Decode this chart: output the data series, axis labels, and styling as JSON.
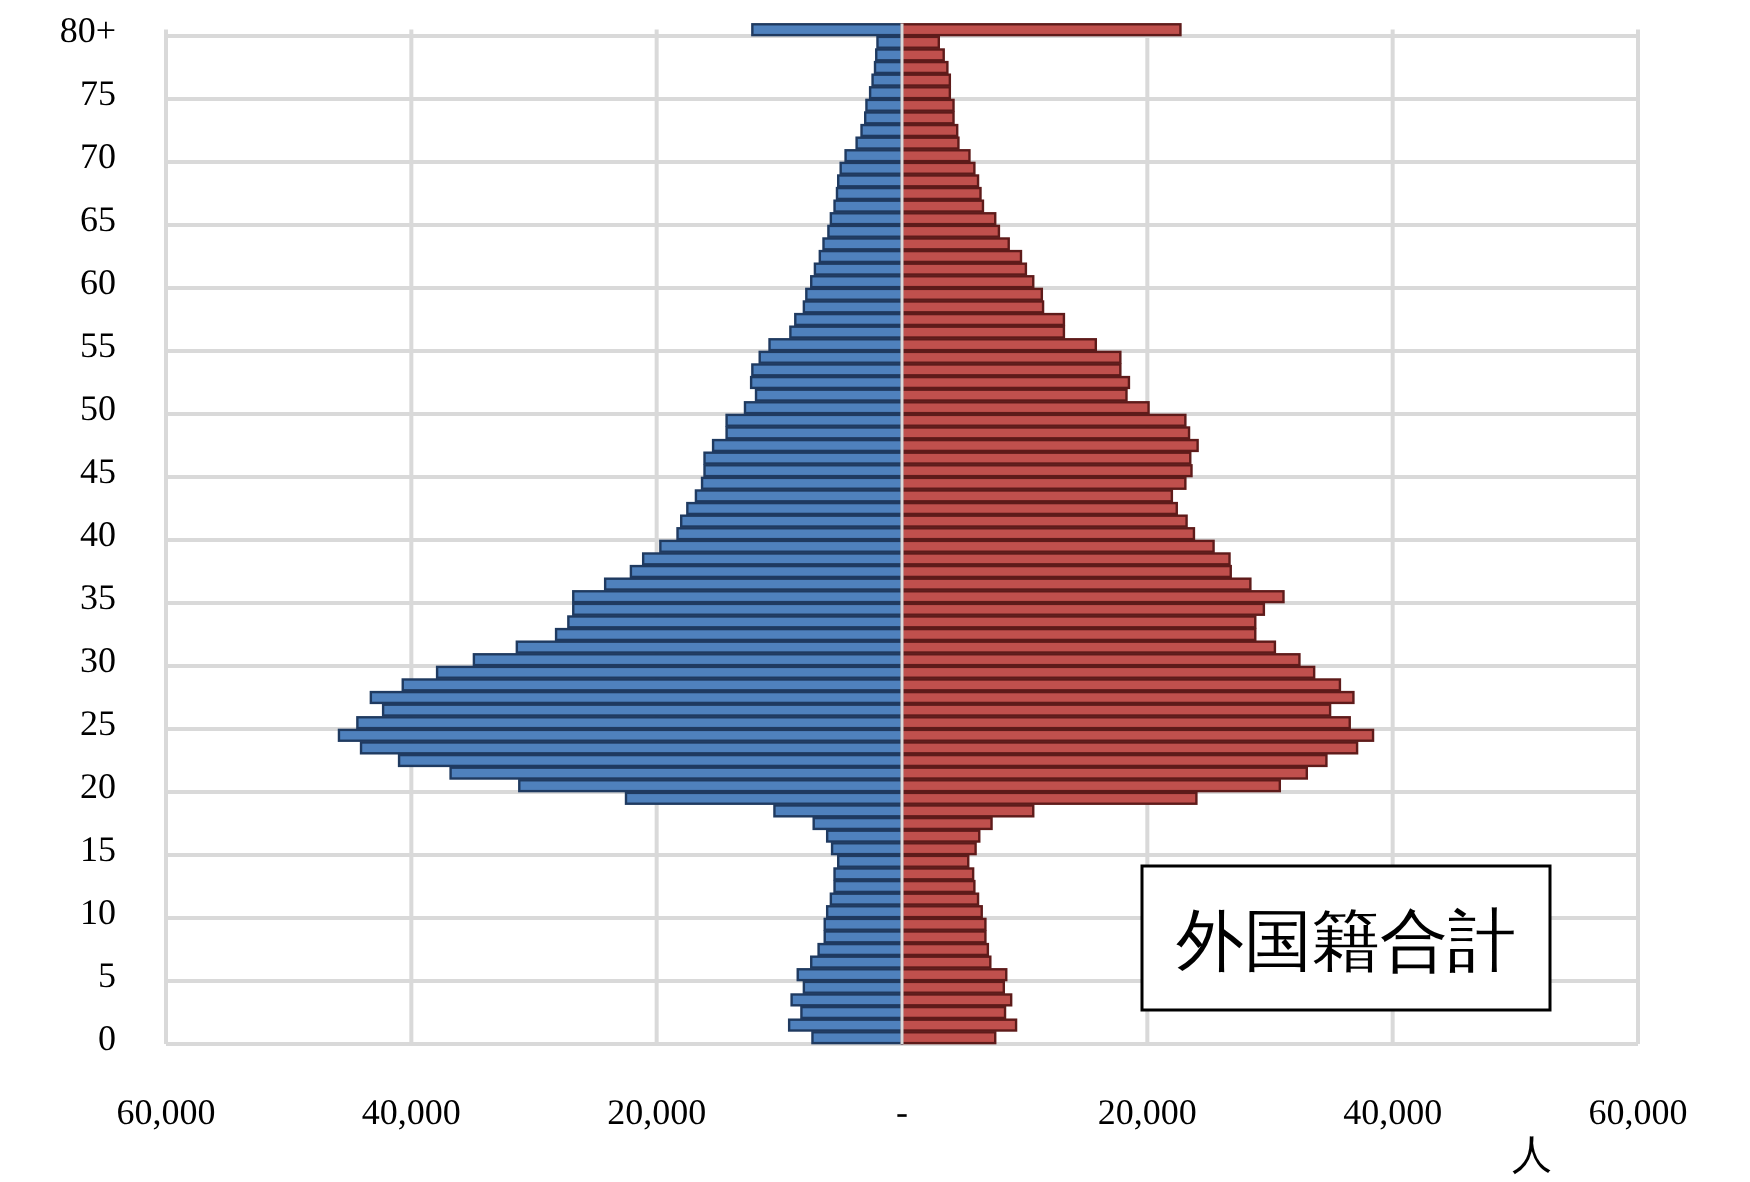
{
  "chart_data": {
    "type": "bar",
    "orientation": "horizontal",
    "stacked": true,
    "categories": [
      "80+",
      null,
      null,
      null,
      null,
      "75",
      null,
      null,
      null,
      null,
      "70",
      null,
      null,
      null,
      null,
      "65",
      null,
      null,
      null,
      null,
      "60",
      null,
      null,
      null,
      null,
      "55",
      null,
      null,
      null,
      null,
      "50",
      null,
      null,
      null,
      null,
      "45",
      null,
      null,
      null,
      null,
      "40",
      null,
      null,
      null,
      null,
      "35",
      null,
      null,
      null,
      null,
      "30",
      null,
      null,
      null,
      null,
      "25",
      null,
      null,
      null,
      null,
      "20",
      null,
      null,
      null,
      null,
      "15",
      null,
      null,
      null,
      null,
      "10",
      null,
      null,
      null,
      null,
      "5",
      null,
      null,
      null,
      null,
      "0"
    ],
    "series": [
      {
        "color": "#4f81bd",
        "values": [
          -12200,
          -2000,
          -2100,
          -2200,
          -2400,
          -2600,
          -2900,
          -3000,
          -3300,
          -3700,
          -4600,
          -5000,
          -5200,
          -5300,
          -5500,
          -5800,
          -6000,
          -6400,
          -6700,
          -7100,
          -7400,
          -7800,
          -8000,
          -8700,
          -9100,
          -10800,
          -11600,
          -12200,
          -12300,
          -11900,
          -12800,
          -14300,
          -14300,
          -15400,
          -16100,
          -16100,
          -16300,
          -16800,
          -17500,
          -18000,
          -18300,
          -19700,
          -21100,
          -22100,
          -24200,
          -26800,
          -26800,
          -27200,
          -28200,
          -31400,
          -34900,
          -37900,
          -40700,
          -43300,
          -42300,
          -44400,
          -45900,
          -44100,
          -41000,
          -36800,
          -31200,
          -22500,
          -10400,
          -7200,
          -6100,
          -5700,
          -5200,
          -5500,
          -5500,
          -5800,
          -6100,
          -6300,
          -6300,
          -6800,
          -7400,
          -8500,
          -8000,
          -9000,
          -8200,
          -9200,
          -7300
        ]
      },
      {
        "color": "#c0504d",
        "values": [
          22700,
          3000,
          3400,
          3700,
          3900,
          3900,
          4200,
          4200,
          4500,
          4600,
          5500,
          5900,
          6200,
          6400,
          6600,
          7600,
          7900,
          8700,
          9700,
          10100,
          10700,
          11400,
          11500,
          13200,
          13200,
          15800,
          17800,
          17800,
          18500,
          18300,
          20100,
          23100,
          23400,
          24100,
          23500,
          23600,
          23100,
          22000,
          22400,
          23200,
          23800,
          25400,
          26700,
          26800,
          28400,
          31100,
          29500,
          28800,
          28800,
          30400,
          32400,
          33600,
          35700,
          36800,
          34900,
          36500,
          38400,
          37100,
          34600,
          33000,
          30800,
          24000,
          10700,
          7300,
          6300,
          6000,
          5400,
          5800,
          5900,
          6200,
          6500,
          6800,
          6800,
          7000,
          7200,
          8500,
          8300,
          8900,
          8400,
          9300,
          7600
        ]
      }
    ],
    "xlim": [
      -60000,
      60000
    ],
    "xticks": [
      {
        "value": -60000,
        "label": "60,000"
      },
      {
        "value": -40000,
        "label": "40,000"
      },
      {
        "value": -20000,
        "label": "20,000"
      },
      {
        "value": 0,
        "label": "-"
      },
      {
        "value": 20000,
        "label": "20,000"
      },
      {
        "value": 40000,
        "label": "40,000"
      },
      {
        "value": 60000,
        "label": "60,000"
      }
    ],
    "xlabel": "人",
    "grid": true,
    "annotations": [
      "外国籍合計"
    ]
  }
}
